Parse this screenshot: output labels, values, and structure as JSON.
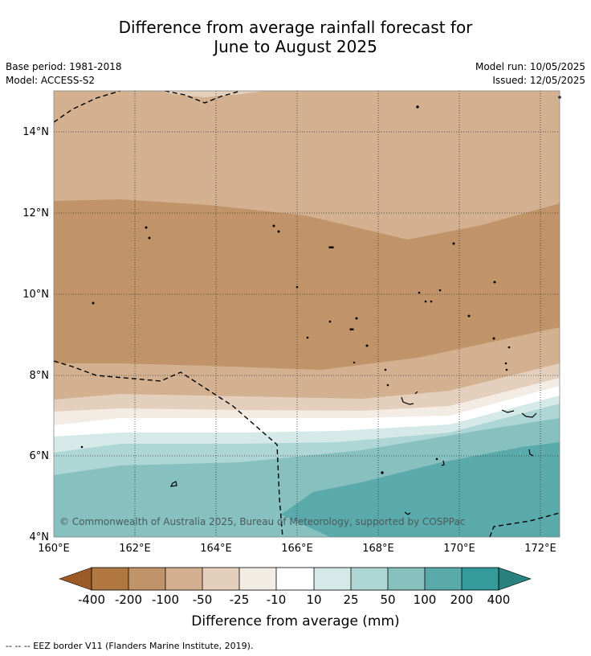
{
  "title_line1": "Difference from average rainfall forecast for",
  "title_line2": "June to August 2025",
  "meta": {
    "base_period": "Base period: 1981-2018",
    "model": "Model: ACCESS-S2",
    "model_run": "Model run: 10/05/2025",
    "issued": "Issued: 12/05/2025"
  },
  "credit": "© Commonwealth of Australia 2025, Bureau of Meteorology, supported by COSPPac",
  "footnote": "-- -- -- EEZ border V11 (Flanders Marine Institute, 2019).",
  "map": {
    "lon_labels": [
      "160°E",
      "162°E",
      "164°E",
      "166°E",
      "168°E",
      "170°E",
      "172°E"
    ],
    "lat_labels": [
      "14°N",
      "12°N",
      "10°N",
      "8°N",
      "6°N",
      "4°N"
    ],
    "lon_range": [
      160,
      172.5
    ],
    "lat_range": [
      4,
      15
    ]
  },
  "legend": {
    "title": "Difference from average (mm)",
    "tick_labels": [
      "-400",
      "-200",
      "-100",
      "-50",
      "-25",
      "-10",
      "10",
      "25",
      "50",
      "100",
      "200",
      "400"
    ],
    "colors": {
      "below_-400": "#9a5b28",
      "-400_to_-200": "#b0773f",
      "-200_to_-100": "#c09368",
      "-100_to_-50": "#d2b090",
      "-50_to_-25": "#e4cfbd",
      "-25_to_-10": "#f3ece5",
      "-10_to_10": "#ffffff",
      "10_to_25": "#d5eae8",
      "25_to_50": "#aed6d5",
      "50_to_100": "#86c0bf",
      "100_to_200": "#5aaaab",
      "200_to_400": "#349b9a",
      "above_400": "#28807f"
    }
  }
}
